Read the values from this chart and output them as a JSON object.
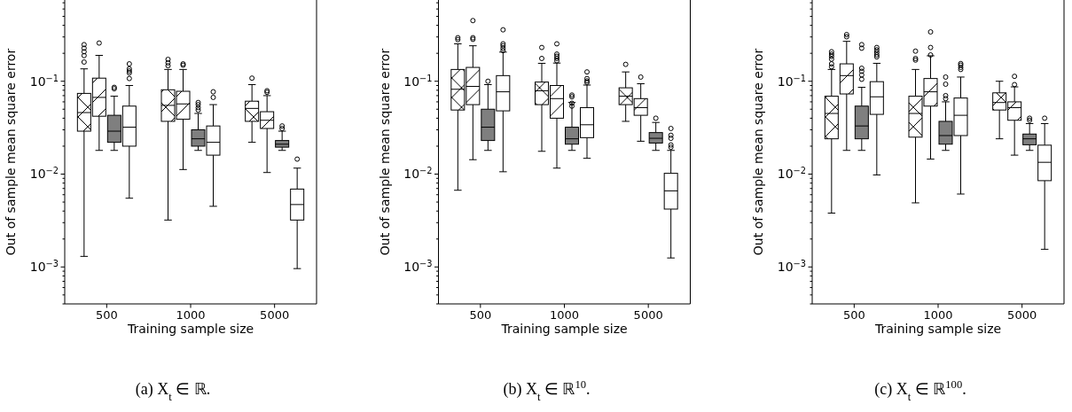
{
  "chart_data": [
    {
      "type": "box",
      "categories": [
        "500",
        "1000",
        "5000"
      ],
      "xlabel": "Training sample size",
      "ylabel": "Out of sample mean square error",
      "annotations": [
        "(a) X$_{t}$ ∈ ℝ."
      ],
      "log": true,
      "grid": false,
      "ylim": [
        0.0004,
        0.75
      ],
      "yticks": [
        {
          "value": 0.0004,
          "label": null
        },
        {
          "value": 0.0005,
          "label": null
        },
        {
          "value": 0.0006,
          "label": null
        },
        {
          "value": 0.0007,
          "label": null
        },
        {
          "value": 0.0008,
          "label": null
        },
        {
          "value": 0.0009,
          "label": null
        },
        {
          "value": 0.001,
          "label": "10$^{−3}$"
        },
        {
          "value": 0.002,
          "label": null
        },
        {
          "value": 0.003,
          "label": null
        },
        {
          "value": 0.004,
          "label": null
        },
        {
          "value": 0.005,
          "label": null
        },
        {
          "value": 0.006,
          "label": null
        },
        {
          "value": 0.007,
          "label": null
        },
        {
          "value": 0.008,
          "label": null
        },
        {
          "value": 0.009,
          "label": null
        },
        {
          "value": 0.01,
          "label": "10$^{−2}$"
        },
        {
          "value": 0.02,
          "label": null
        },
        {
          "value": 0.03,
          "label": null
        },
        {
          "value": 0.04,
          "label": null
        },
        {
          "value": 0.05,
          "label": null
        },
        {
          "value": 0.06,
          "label": null
        },
        {
          "value": 0.07,
          "label": null
        },
        {
          "value": 0.08,
          "label": null
        },
        {
          "value": 0.09,
          "label": null
        },
        {
          "value": 0.1,
          "label": "10$^{−1}$"
        },
        {
          "value": 0.2,
          "label": null
        },
        {
          "value": 0.3,
          "label": null
        },
        {
          "value": 0.4,
          "label": null
        },
        {
          "value": 0.5,
          "label": null
        },
        {
          "value": 0.6,
          "label": null
        },
        {
          "value": 0.7,
          "label": null
        }
      ],
      "series": [
        {
          "color": "#ffffff",
          "boxes": [
            {
              "low": 0.0013,
              "q1": 0.029,
              "median": 0.046,
              "q3": 0.074,
              "high": 0.136,
              "outliers": [
                0.248,
                0.227,
                0.208,
                0.189,
                0.161
              ]
            },
            {
              "low": 0.0032,
              "q1": 0.037,
              "median": 0.055,
              "q3": 0.081,
              "high": 0.134,
              "outliers": [
                0.172,
                0.158,
                0.147
              ]
            },
            {
              "low": 0.022,
              "q1": 0.037,
              "median": 0.051,
              "q3": 0.061,
              "high": 0.092,
              "outliers": [
                0.108
              ]
            }
          ]
        },
        {
          "color": "#ffffff",
          "boxes": [
            {
              "low": 0.018,
              "q1": 0.042,
              "median": 0.067,
              "q3": 0.108,
              "high": 0.19,
              "outliers": [
                0.258
              ]
            },
            {
              "low": 0.0112,
              "q1": 0.039,
              "median": 0.057,
              "q3": 0.078,
              "high": 0.134,
              "outliers": [
                0.154,
                0.149
              ]
            },
            {
              "low": 0.0104,
              "q1": 0.031,
              "median": 0.038,
              "q3": 0.047,
              "high": 0.07,
              "outliers": [
                0.079,
                0.076
              ]
            }
          ]
        },
        {
          "color": "#7f7f7f",
          "boxes": [
            {
              "low": 0.018,
              "q1": 0.022,
              "median": 0.029,
              "q3": 0.043,
              "high": 0.069,
              "outliers": [
                0.086,
                0.083
              ]
            },
            {
              "low": 0.018,
              "q1": 0.02,
              "median": 0.024,
              "q3": 0.03,
              "high": 0.045,
              "outliers": [
                0.059,
                0.056,
                0.052,
                0.049
              ]
            },
            {
              "low": 0.018,
              "q1": 0.0195,
              "median": 0.021,
              "q3": 0.023,
              "high": 0.029,
              "outliers": [
                0.033,
                0.031
              ]
            }
          ]
        },
        {
          "color": "#ffffff",
          "boxes": [
            {
              "low": 0.0055,
              "q1": 0.02,
              "median": 0.032,
              "q3": 0.054,
              "high": 0.09,
              "outliers": [
                0.154,
                0.136,
                0.129,
                0.123,
                0.107
              ]
            },
            {
              "low": 0.0045,
              "q1": 0.016,
              "median": 0.022,
              "q3": 0.033,
              "high": 0.056,
              "outliers": [
                0.077,
                0.067
              ]
            },
            {
              "low": 0.00096,
              "q1": 0.0032,
              "median": 0.0047,
              "q3": 0.0069,
              "high": 0.0116,
              "outliers": [
                0.0145
              ]
            }
          ]
        }
      ]
    },
    {
      "type": "box",
      "categories": [
        "500",
        "1000",
        "5000"
      ],
      "xlabel": "Training sample size",
      "ylabel": "Out of sample mean square error",
      "annotations": [
        "(b) X$_{t}$ ∈ ℝ$^{10}$."
      ],
      "log": true,
      "grid": false,
      "ylim": [
        0.0004,
        0.75
      ],
      "yticks": [
        {
          "value": 0.0004,
          "label": null
        },
        {
          "value": 0.0005,
          "label": null
        },
        {
          "value": 0.0006,
          "label": null
        },
        {
          "value": 0.0007,
          "label": null
        },
        {
          "value": 0.0008,
          "label": null
        },
        {
          "value": 0.0009,
          "label": null
        },
        {
          "value": 0.001,
          "label": "10$^{−3}$"
        },
        {
          "value": 0.002,
          "label": null
        },
        {
          "value": 0.003,
          "label": null
        },
        {
          "value": 0.004,
          "label": null
        },
        {
          "value": 0.005,
          "label": null
        },
        {
          "value": 0.006,
          "label": null
        },
        {
          "value": 0.007,
          "label": null
        },
        {
          "value": 0.008,
          "label": null
        },
        {
          "value": 0.009,
          "label": null
        },
        {
          "value": 0.01,
          "label": "10$^{−2}$"
        },
        {
          "value": 0.02,
          "label": null
        },
        {
          "value": 0.03,
          "label": null
        },
        {
          "value": 0.04,
          "label": null
        },
        {
          "value": 0.05,
          "label": null
        },
        {
          "value": 0.06,
          "label": null
        },
        {
          "value": 0.07,
          "label": null
        },
        {
          "value": 0.08,
          "label": null
        },
        {
          "value": 0.09,
          "label": null
        },
        {
          "value": 0.1,
          "label": "10$^{−1}$"
        },
        {
          "value": 0.2,
          "label": null
        },
        {
          "value": 0.3,
          "label": null
        },
        {
          "value": 0.4,
          "label": null
        },
        {
          "value": 0.5,
          "label": null
        },
        {
          "value": 0.6,
          "label": null
        },
        {
          "value": 0.7,
          "label": null
        }
      ],
      "series": [
        {
          "color": "#ffffff",
          "boxes": [
            {
              "low": 0.0067,
              "q1": 0.049,
              "median": 0.082,
              "q3": 0.134,
              "high": 0.253,
              "outliers": [
                0.294,
                0.281
              ]
            },
            {
              "low": 0.0176,
              "q1": 0.056,
              "median": 0.079,
              "q3": 0.098,
              "high": 0.156,
              "outliers": [
                0.231,
                0.176
              ]
            },
            {
              "low": 0.037,
              "q1": 0.056,
              "median": 0.069,
              "q3": 0.085,
              "high": 0.126,
              "outliers": [
                0.152
              ]
            }
          ]
        },
        {
          "color": "#ffffff",
          "boxes": [
            {
              "low": 0.0143,
              "q1": 0.056,
              "median": 0.088,
              "q3": 0.141,
              "high": 0.241,
              "outliers": [
                0.45,
                0.294,
                0.283
              ]
            },
            {
              "low": 0.0116,
              "q1": 0.04,
              "median": 0.065,
              "q3": 0.09,
              "high": 0.157,
              "outliers": [
                0.253,
                0.196,
                0.186,
                0.176,
                0.166
              ]
            },
            {
              "low": 0.0226,
              "q1": 0.043,
              "median": 0.052,
              "q3": 0.065,
              "high": 0.094,
              "outliers": [
                0.111
              ]
            }
          ]
        },
        {
          "color": "#7f7f7f",
          "boxes": [
            {
              "low": 0.018,
              "q1": 0.023,
              "median": 0.032,
              "q3": 0.05,
              "high": 0.092,
              "outliers": [
                0.1
              ]
            },
            {
              "low": 0.018,
              "q1": 0.021,
              "median": 0.024,
              "q3": 0.032,
              "high": 0.059,
              "outliers": [
                0.071,
                0.068,
                0.058,
                0.054
              ]
            },
            {
              "low": 0.018,
              "q1": 0.0216,
              "median": 0.0243,
              "q3": 0.028,
              "high": 0.036,
              "outliers": [
                0.04
              ]
            }
          ]
        },
        {
          "color": "#ffffff",
          "boxes": [
            {
              "low": 0.0106,
              "q1": 0.048,
              "median": 0.077,
              "q3": 0.115,
              "high": 0.206,
              "outliers": [
                0.358,
                0.253,
                0.241,
                0.227,
                0.214
              ]
            },
            {
              "low": 0.0148,
              "q1": 0.0247,
              "median": 0.034,
              "q3": 0.052,
              "high": 0.091,
              "outliers": [
                0.126,
                0.107,
                0.101,
                0.097
              ]
            },
            {
              "low": 0.00125,
              "q1": 0.0042,
              "median": 0.0066,
              "q3": 0.0102,
              "high": 0.018,
              "outliers": [
                0.031,
                0.0262,
                0.0243,
                0.0206,
                0.0195
              ]
            }
          ]
        }
      ]
    },
    {
      "type": "box",
      "categories": [
        "500",
        "1000",
        "5000"
      ],
      "xlabel": "Training sample size",
      "ylabel": "Out of sample mean square error",
      "annotations": [
        "(c) X$_{t}$ ∈ ℝ$^{100}$."
      ],
      "log": true,
      "grid": false,
      "ylim": [
        0.0004,
        0.75
      ],
      "yticks": [
        {
          "value": 0.0004,
          "label": null
        },
        {
          "value": 0.0005,
          "label": null
        },
        {
          "value": 0.0006,
          "label": null
        },
        {
          "value": 0.0007,
          "label": null
        },
        {
          "value": 0.0008,
          "label": null
        },
        {
          "value": 0.0009,
          "label": null
        },
        {
          "value": 0.001,
          "label": "10$^{−3}$"
        },
        {
          "value": 0.002,
          "label": null
        },
        {
          "value": 0.003,
          "label": null
        },
        {
          "value": 0.004,
          "label": null
        },
        {
          "value": 0.005,
          "label": null
        },
        {
          "value": 0.006,
          "label": null
        },
        {
          "value": 0.007,
          "label": null
        },
        {
          "value": 0.008,
          "label": null
        },
        {
          "value": 0.009,
          "label": null
        },
        {
          "value": 0.01,
          "label": "10$^{−2}$"
        },
        {
          "value": 0.02,
          "label": null
        },
        {
          "value": 0.03,
          "label": null
        },
        {
          "value": 0.04,
          "label": null
        },
        {
          "value": 0.05,
          "label": null
        },
        {
          "value": 0.06,
          "label": null
        },
        {
          "value": 0.07,
          "label": null
        },
        {
          "value": 0.08,
          "label": null
        },
        {
          "value": 0.09,
          "label": null
        },
        {
          "value": 0.1,
          "label": "10$^{−1}$"
        },
        {
          "value": 0.2,
          "label": null
        },
        {
          "value": 0.3,
          "label": null
        },
        {
          "value": 0.4,
          "label": null
        },
        {
          "value": 0.5,
          "label": null
        },
        {
          "value": 0.6,
          "label": null
        },
        {
          "value": 0.7,
          "label": null
        }
      ],
      "series": [
        {
          "color": "#ffffff",
          "boxes": [
            {
              "low": 0.0038,
              "q1": 0.024,
              "median": 0.045,
              "q3": 0.069,
              "high": 0.134,
              "outliers": [
                0.208,
                0.196,
                0.185,
                0.173,
                0.154,
                0.143
              ]
            },
            {
              "low": 0.0049,
              "q1": 0.025,
              "median": 0.045,
              "q3": 0.069,
              "high": 0.134,
              "outliers": [
                0.211,
                0.176,
                0.169
              ]
            },
            {
              "low": 0.024,
              "q1": 0.049,
              "median": 0.059,
              "q3": 0.075,
              "high": 0.1
            }
          ]
        },
        {
          "color": "#ffffff",
          "boxes": [
            {
              "low": 0.018,
              "q1": 0.073,
              "median": 0.115,
              "q3": 0.154,
              "high": 0.269,
              "outliers": [
                0.318,
                0.301
              ]
            },
            {
              "low": 0.0145,
              "q1": 0.054,
              "median": 0.077,
              "q3": 0.107,
              "high": 0.188,
              "outliers": [
                0.34,
                0.231,
                0.192
              ]
            },
            {
              "low": 0.016,
              "q1": 0.038,
              "median": 0.052,
              "q3": 0.06,
              "high": 0.087,
              "outliers": [
                0.113,
                0.092
              ]
            }
          ]
        },
        {
          "color": "#7f7f7f",
          "boxes": [
            {
              "low": 0.018,
              "q1": 0.024,
              "median": 0.033,
              "q3": 0.054,
              "high": 0.086,
              "outliers": [
                0.248,
                0.227,
                0.138,
                0.128,
                0.117,
                0.105
              ]
            },
            {
              "low": 0.018,
              "q1": 0.021,
              "median": 0.026,
              "q3": 0.037,
              "high": 0.06,
              "outliers": [
                0.111,
                0.093,
                0.07,
                0.065
              ]
            },
            {
              "low": 0.018,
              "q1": 0.0207,
              "median": 0.024,
              "q3": 0.027,
              "high": 0.035,
              "outliers": [
                0.04,
                0.038
              ]
            }
          ]
        },
        {
          "color": "#ffffff",
          "boxes": [
            {
              "low": 0.0098,
              "q1": 0.044,
              "median": 0.068,
              "q3": 0.099,
              "high": 0.156,
              "outliers": [
                0.231,
                0.218,
                0.205,
                0.192,
                0.183
              ]
            },
            {
              "low": 0.0061,
              "q1": 0.026,
              "median": 0.043,
              "q3": 0.066,
              "high": 0.111,
              "outliers": [
                0.155,
                0.149,
                0.141,
                0.134
              ]
            },
            {
              "low": 0.00155,
              "q1": 0.0085,
              "median": 0.0134,
              "q3": 0.0205,
              "high": 0.035,
              "outliers": [
                0.04
              ]
            }
          ]
        }
      ]
    }
  ]
}
